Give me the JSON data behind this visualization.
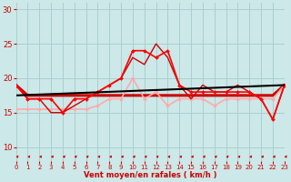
{
  "xlabel": "Vent moyen/en rafales ( km/h )",
  "xlim": [
    0,
    23
  ],
  "ylim": [
    8,
    31
  ],
  "yticks": [
    10,
    15,
    20,
    25,
    30
  ],
  "xticks": [
    0,
    1,
    2,
    3,
    4,
    5,
    6,
    7,
    8,
    9,
    10,
    11,
    12,
    13,
    14,
    15,
    16,
    17,
    18,
    19,
    20,
    21,
    22,
    23
  ],
  "bg_color": "#cce8e8",
  "grid_color": "#aacfcf",
  "series": [
    {
      "x": [
        0,
        1,
        2,
        3,
        4,
        5,
        6,
        7,
        8,
        9,
        10,
        11,
        12,
        13,
        14,
        15,
        16,
        17,
        18,
        19,
        20,
        21,
        22,
        23
      ],
      "y": [
        19,
        17.5,
        17.5,
        17.5,
        17.5,
        17.5,
        17.5,
        17.5,
        17.5,
        17.5,
        17.5,
        17.5,
        17.5,
        17.5,
        17.5,
        17.5,
        17.5,
        17.5,
        17.5,
        17.5,
        17.5,
        17.5,
        17.5,
        19
      ],
      "color": "#cc0000",
      "lw": 2.2,
      "marker": null,
      "zorder": 3
    },
    {
      "x": [
        0,
        1,
        2,
        3,
        4,
        5,
        6,
        7,
        8,
        9,
        10,
        11,
        12,
        13,
        14,
        15,
        16,
        17,
        18,
        19,
        20,
        21,
        22,
        23
      ],
      "y": [
        19,
        17,
        17,
        17,
        15,
        17,
        17,
        18,
        19,
        20,
        24,
        24,
        23,
        24,
        19,
        18,
        18,
        18,
        18,
        18,
        18,
        17,
        14,
        19
      ],
      "color": "#ff0000",
      "lw": 1.2,
      "marker": "D",
      "markersize": 2.0,
      "zorder": 5
    },
    {
      "x": [
        0,
        1,
        2,
        3,
        4,
        5,
        6,
        7,
        8,
        9,
        10,
        11,
        12,
        13,
        14,
        15,
        16,
        17,
        18,
        19,
        20,
        21,
        22,
        23
      ],
      "y": [
        15.5,
        15.5,
        15.5,
        15.5,
        15.5,
        15.5,
        15.5,
        16,
        17,
        17,
        20,
        17,
        18,
        16,
        17,
        17,
        17,
        16,
        17,
        17,
        17,
        17,
        17,
        19
      ],
      "color": "#ffaaaa",
      "lw": 1.2,
      "marker": "D",
      "markersize": 2.0,
      "zorder": 4
    },
    {
      "x": [
        0,
        1,
        2,
        3,
        4,
        5,
        6,
        7,
        8,
        9,
        10,
        11,
        12,
        13,
        14,
        15,
        16,
        17,
        18,
        19,
        20,
        21,
        22,
        23
      ],
      "y": [
        19,
        17,
        17,
        15,
        15,
        16,
        17,
        18,
        19,
        20,
        23,
        22,
        25,
        23,
        19,
        17,
        19,
        18,
        18,
        19,
        18,
        17,
        14,
        19
      ],
      "color": "#cc0000",
      "lw": 1.0,
      "marker": null,
      "zorder": 4
    },
    {
      "x": [
        0,
        23
      ],
      "y": [
        17.5,
        19.0
      ],
      "color": "#000000",
      "lw": 1.5,
      "marker": null,
      "zorder": 6
    }
  ],
  "arrow_color": "#cc0000",
  "xlabel_color": "#cc0000",
  "tick_color": "#cc0000"
}
